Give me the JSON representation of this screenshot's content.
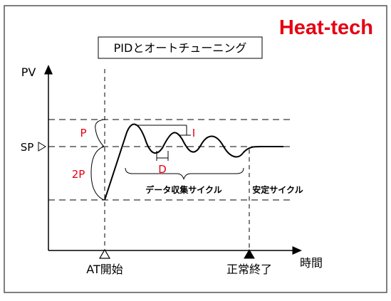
{
  "brand": {
    "text": "Heat-tech",
    "color": "#e60012"
  },
  "title": "PIDとオートチューニング",
  "axis": {
    "y_label": "PV",
    "x_label": "時間"
  },
  "levels": {
    "sp_label": "SP"
  },
  "annotations": {
    "p": "P",
    "two_p": "2P",
    "i": "I",
    "d": "D",
    "data_collection": "データ収集サイクル",
    "stable": "安定サイクル"
  },
  "events": {
    "at_start": "AT開始",
    "normal_end": "正常終了"
  },
  "colors": {
    "annotation": "#e60012",
    "line": "#000000",
    "frame": "#555555"
  }
}
